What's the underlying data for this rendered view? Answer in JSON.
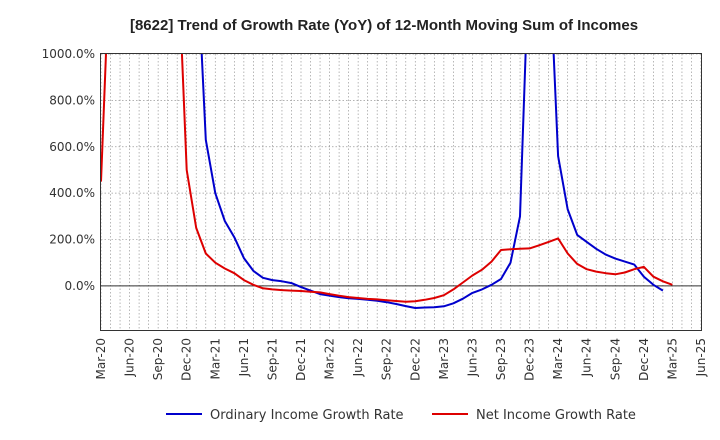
{
  "chart_data": {
    "type": "line",
    "title": "[8622]  Trend of Growth Rate (YoY) of 12-Month Moving Sum of Incomes",
    "xlabel": "",
    "ylabel": "",
    "x": [
      "Mar-20",
      "Jun-20",
      "Sep-20",
      "Dec-20",
      "Mar-21",
      "Jun-21",
      "Sep-21",
      "Dec-21",
      "Mar-22",
      "Jun-22",
      "Sep-22",
      "Dec-22",
      "Mar-23",
      "Jun-23",
      "Sep-23",
      "Dec-23",
      "Mar-24",
      "Jun-24",
      "Sep-24",
      "Dec-24",
      "Mar-25",
      "Jun-25"
    ],
    "y_ticks": [
      0,
      200,
      400,
      600,
      800,
      1000
    ],
    "y_tick_labels": [
      "0.0%",
      "200.0%",
      "400.0%",
      "600.0%",
      "800.0%",
      "1000.0%"
    ],
    "ylim": [
      -190,
      1000
    ],
    "grid": true,
    "legend_position": "bottom",
    "series": [
      {
        "name": "Ordinary Income Growth Rate",
        "color": "#0000cc",
        "points": [
          [
            "2020-12",
            null
          ],
          [
            "2021-01",
            1500
          ],
          [
            "2021-02",
            630
          ],
          [
            "2021-03",
            400
          ],
          [
            "2021-04",
            280
          ],
          [
            "2021-05",
            210
          ],
          [
            "2021-06",
            120
          ],
          [
            "2021-07",
            65
          ],
          [
            "2021-08",
            35
          ],
          [
            "2021-09",
            25
          ],
          [
            "2021-10",
            20
          ],
          [
            "2021-11",
            12
          ],
          [
            "2021-12",
            -5
          ],
          [
            "2022-01",
            -20
          ],
          [
            "2022-02",
            -35
          ],
          [
            "2022-03",
            -42
          ],
          [
            "2022-04",
            -48
          ],
          [
            "2022-05",
            -53
          ],
          [
            "2022-06",
            -56
          ],
          [
            "2022-07",
            -60
          ],
          [
            "2022-08",
            -64
          ],
          [
            "2022-09",
            -70
          ],
          [
            "2022-10",
            -78
          ],
          [
            "2022-11",
            -87
          ],
          [
            "2022-12",
            -95
          ],
          [
            "2023-01",
            -93
          ],
          [
            "2023-02",
            -92
          ],
          [
            "2023-03",
            -88
          ],
          [
            "2023-04",
            -75
          ],
          [
            "2023-05",
            -55
          ],
          [
            "2023-06",
            -30
          ],
          [
            "2023-07",
            -15
          ],
          [
            "2023-08",
            5
          ],
          [
            "2023-09",
            30
          ],
          [
            "2023-10",
            100
          ],
          [
            "2023-11",
            300
          ],
          [
            "2023-12",
            1500
          ],
          [
            "2024-01",
            null
          ],
          [
            "2024-02",
            1500
          ],
          [
            "2024-03",
            560
          ],
          [
            "2024-04",
            330
          ],
          [
            "2024-05",
            220
          ],
          [
            "2024-06",
            190
          ],
          [
            "2024-07",
            160
          ],
          [
            "2024-08",
            135
          ],
          [
            "2024-09",
            118
          ],
          [
            "2024-10",
            105
          ],
          [
            "2024-11",
            92
          ],
          [
            "2024-12",
            40
          ],
          [
            "2025-01",
            5
          ],
          [
            "2025-02",
            -20
          ]
        ]
      },
      {
        "name": "Net Income Growth Rate",
        "color": "#dd0000",
        "points": [
          [
            "2020-03",
            450
          ],
          [
            "2020-04",
            1500
          ],
          [
            "2020-05",
            null
          ],
          [
            "2020-11",
            1500
          ],
          [
            "2020-12",
            500
          ],
          [
            "2021-01",
            250
          ],
          [
            "2021-02",
            140
          ],
          [
            "2021-03",
            100
          ],
          [
            "2021-04",
            75
          ],
          [
            "2021-05",
            55
          ],
          [
            "2021-06",
            25
          ],
          [
            "2021-07",
            5
          ],
          [
            "2021-08",
            -10
          ],
          [
            "2021-09",
            -15
          ],
          [
            "2021-10",
            -18
          ],
          [
            "2021-11",
            -20
          ],
          [
            "2021-12",
            -22
          ],
          [
            "2022-01",
            -25
          ],
          [
            "2022-02",
            -28
          ],
          [
            "2022-03",
            -35
          ],
          [
            "2022-04",
            -42
          ],
          [
            "2022-05",
            -48
          ],
          [
            "2022-06",
            -52
          ],
          [
            "2022-07",
            -56
          ],
          [
            "2022-08",
            -58
          ],
          [
            "2022-09",
            -62
          ],
          [
            "2022-10",
            -65
          ],
          [
            "2022-11",
            -68
          ],
          [
            "2022-12",
            -66
          ],
          [
            "2023-01",
            -60
          ],
          [
            "2023-02",
            -52
          ],
          [
            "2023-03",
            -40
          ],
          [
            "2023-04",
            -15
          ],
          [
            "2023-05",
            15
          ],
          [
            "2023-06",
            45
          ],
          [
            "2023-07",
            70
          ],
          [
            "2023-08",
            105
          ],
          [
            "2023-09",
            155
          ],
          [
            "2023-10",
            158
          ],
          [
            "2023-11",
            160
          ],
          [
            "2023-12",
            162
          ],
          [
            "2024-01",
            175
          ],
          [
            "2024-02",
            190
          ],
          [
            "2024-03",
            205
          ],
          [
            "2024-04",
            140
          ],
          [
            "2024-05",
            95
          ],
          [
            "2024-06",
            72
          ],
          [
            "2024-07",
            62
          ],
          [
            "2024-08",
            55
          ],
          [
            "2024-09",
            50
          ],
          [
            "2024-10",
            58
          ],
          [
            "2024-11",
            72
          ],
          [
            "2024-12",
            82
          ],
          [
            "2025-01",
            40
          ],
          [
            "2025-02",
            20
          ],
          [
            "2025-03",
            5
          ]
        ]
      }
    ]
  }
}
